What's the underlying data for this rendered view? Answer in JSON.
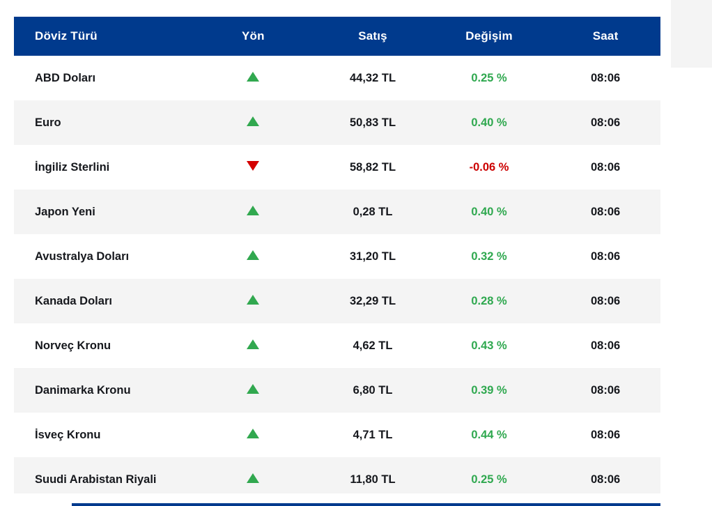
{
  "colors": {
    "header_bg": "#003a8d",
    "row_alt_bg": "#f4f4f4",
    "row_text": "#16181d",
    "up_green": "#2fa84f",
    "down_red": "#cc0000"
  },
  "table": {
    "columns": [
      {
        "key": "currency",
        "label": "Döviz Türü"
      },
      {
        "key": "direction",
        "label": "Yön"
      },
      {
        "key": "price",
        "label": "Satış"
      },
      {
        "key": "change",
        "label": "Değişim"
      },
      {
        "key": "time",
        "label": "Saat"
      }
    ],
    "rows": [
      {
        "currency": "ABD Doları",
        "direction": "up",
        "price": "44,32 TL",
        "change": "0.25 %",
        "time": "08:06"
      },
      {
        "currency": "Euro",
        "direction": "up",
        "price": "50,83 TL",
        "change": "0.40 %",
        "time": "08:06"
      },
      {
        "currency": "İngiliz Sterlini",
        "direction": "down",
        "price": "58,82 TL",
        "change": "-0.06 %",
        "time": "08:06"
      },
      {
        "currency": "Japon Yeni",
        "direction": "up",
        "price": "0,28 TL",
        "change": "0.40 %",
        "time": "08:06"
      },
      {
        "currency": "Avustralya Doları",
        "direction": "up",
        "price": "31,20 TL",
        "change": "0.32 %",
        "time": "08:06"
      },
      {
        "currency": "Kanada Doları",
        "direction": "up",
        "price": "32,29 TL",
        "change": "0.28 %",
        "time": "08:06"
      },
      {
        "currency": "Norveç Kronu",
        "direction": "up",
        "price": "4,62 TL",
        "change": "0.43 %",
        "time": "08:06"
      },
      {
        "currency": "Danimarka Kronu",
        "direction": "up",
        "price": "6,80 TL",
        "change": "0.39 %",
        "time": "08:06"
      },
      {
        "currency": "İsveç Kronu",
        "direction": "up",
        "price": "4,71 TL",
        "change": "0.44 %",
        "time": "08:06"
      },
      {
        "currency": "Suudi Arabistan Riyali",
        "direction": "up",
        "price": "11,80 TL",
        "change": "0.25 %",
        "time": "08:06"
      }
    ]
  }
}
